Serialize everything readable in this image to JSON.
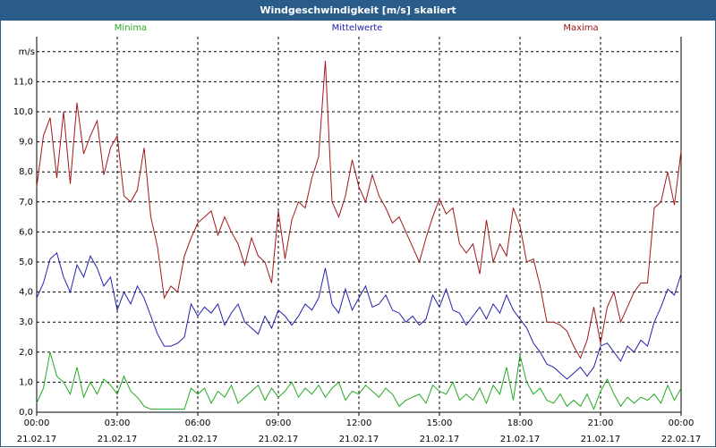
{
  "window": {
    "title": "Windgeschwindigkeit [m/s] skaliert"
  },
  "colors": {
    "titlebar": "#2a5c8a",
    "minima": "#22aa22",
    "mittelwerte": "#2222aa",
    "maxima": "#a01818"
  },
  "chart_data": {
    "type": "line",
    "title": "Windgeschwindigkeit [m/s] skaliert",
    "ylabel": "m/s",
    "xlabel": "",
    "ylim": [
      0,
      12.5
    ],
    "xlim": [
      "21.02.17 00:00",
      "22.02.17 00:00"
    ],
    "grid": true,
    "legend_position": "top",
    "y_ticks": [
      "0,0",
      "1,0",
      "2,0",
      "3,0",
      "4,0",
      "5,0",
      "6,0",
      "7,0",
      "8,0",
      "9,0",
      "10,0",
      "11,0"
    ],
    "x_ticks": [
      {
        "time": "00:00",
        "date": "21.02.17"
      },
      {
        "time": "03:00",
        "date": "21.02.17"
      },
      {
        "time": "06:00",
        "date": "21.02.17"
      },
      {
        "time": "09:00",
        "date": "21.02.17"
      },
      {
        "time": "12:00",
        "date": "21.02.17"
      },
      {
        "time": "15:00",
        "date": "21.02.17"
      },
      {
        "time": "18:00",
        "date": "21.02.17"
      },
      {
        "time": "21:00",
        "date": "21.02.17"
      },
      {
        "time": "00:00",
        "date": "22.02.17"
      }
    ],
    "series": [
      {
        "name": "Minima",
        "color": "#22aa22",
        "points": [
          [
            0,
            0.3
          ],
          [
            0.25,
            0.8
          ],
          [
            0.5,
            2.0
          ],
          [
            0.75,
            1.2
          ],
          [
            1.0,
            1.0
          ],
          [
            1.25,
            0.6
          ],
          [
            1.5,
            1.5
          ],
          [
            1.75,
            0.5
          ],
          [
            2.0,
            1.0
          ],
          [
            2.25,
            0.6
          ],
          [
            2.5,
            1.1
          ],
          [
            2.75,
            0.9
          ],
          [
            3.0,
            0.6
          ],
          [
            3.25,
            1.2
          ],
          [
            3.5,
            0.7
          ],
          [
            3.75,
            0.5
          ],
          [
            4.0,
            0.2
          ],
          [
            4.25,
            0.1
          ],
          [
            4.5,
            0.1
          ],
          [
            4.75,
            0.1
          ],
          [
            5.0,
            0.1
          ],
          [
            5.25,
            0.1
          ],
          [
            5.5,
            0.1
          ],
          [
            5.75,
            0.8
          ],
          [
            6.0,
            0.6
          ],
          [
            6.25,
            0.8
          ],
          [
            6.5,
            0.3
          ],
          [
            6.75,
            0.7
          ],
          [
            7.0,
            0.5
          ],
          [
            7.25,
            0.9
          ],
          [
            7.5,
            0.3
          ],
          [
            7.75,
            0.5
          ],
          [
            8.0,
            0.7
          ],
          [
            8.25,
            0.9
          ],
          [
            8.5,
            0.4
          ],
          [
            8.75,
            0.8
          ],
          [
            9.0,
            0.5
          ],
          [
            9.25,
            0.7
          ],
          [
            9.5,
            1.0
          ],
          [
            9.75,
            0.5
          ],
          [
            10.0,
            0.8
          ],
          [
            10.25,
            0.6
          ],
          [
            10.5,
            0.9
          ],
          [
            10.75,
            0.5
          ],
          [
            11.0,
            0.8
          ],
          [
            11.25,
            1.0
          ],
          [
            11.5,
            0.4
          ],
          [
            11.75,
            0.7
          ],
          [
            12.0,
            0.6
          ],
          [
            12.25,
            0.9
          ],
          [
            12.5,
            0.7
          ],
          [
            12.75,
            0.5
          ],
          [
            13.0,
            0.8
          ],
          [
            13.25,
            0.6
          ],
          [
            13.5,
            0.2
          ],
          [
            13.75,
            0.4
          ],
          [
            14.0,
            0.5
          ],
          [
            14.25,
            0.6
          ],
          [
            14.5,
            0.3
          ],
          [
            14.75,
            0.9
          ],
          [
            15.0,
            0.7
          ],
          [
            15.25,
            0.6
          ],
          [
            15.5,
            1.0
          ],
          [
            15.75,
            0.4
          ],
          [
            16.0,
            0.6
          ],
          [
            16.25,
            0.4
          ],
          [
            16.5,
            0.8
          ],
          [
            16.75,
            0.3
          ],
          [
            17.0,
            0.9
          ],
          [
            17.25,
            0.6
          ],
          [
            17.5,
            1.5
          ],
          [
            17.75,
            0.4
          ],
          [
            18.0,
            1.9
          ],
          [
            18.25,
            1.0
          ],
          [
            18.5,
            0.6
          ],
          [
            18.75,
            0.8
          ],
          [
            19.0,
            0.4
          ],
          [
            19.25,
            0.3
          ],
          [
            19.5,
            0.6
          ],
          [
            19.75,
            0.2
          ],
          [
            20.0,
            0.4
          ],
          [
            20.25,
            0.2
          ],
          [
            20.5,
            0.6
          ],
          [
            20.75,
            0.1
          ],
          [
            21.0,
            0.7
          ],
          [
            21.25,
            1.1
          ],
          [
            21.5,
            0.6
          ],
          [
            21.75,
            0.2
          ],
          [
            22.0,
            0.5
          ],
          [
            22.25,
            0.3
          ],
          [
            22.5,
            0.5
          ],
          [
            22.75,
            0.4
          ],
          [
            23.0,
            0.6
          ],
          [
            23.25,
            0.3
          ],
          [
            23.5,
            0.9
          ],
          [
            23.75,
            0.4
          ],
          [
            24.0,
            0.8
          ]
        ]
      },
      {
        "name": "Mittelwerte",
        "color": "#2222aa",
        "points": [
          [
            0,
            3.8
          ],
          [
            0.25,
            4.3
          ],
          [
            0.5,
            5.1
          ],
          [
            0.75,
            5.3
          ],
          [
            1.0,
            4.5
          ],
          [
            1.25,
            4.0
          ],
          [
            1.5,
            4.9
          ],
          [
            1.75,
            4.5
          ],
          [
            2.0,
            5.2
          ],
          [
            2.25,
            4.8
          ],
          [
            2.5,
            4.2
          ],
          [
            2.75,
            4.5
          ],
          [
            3.0,
            3.4
          ],
          [
            3.25,
            4.0
          ],
          [
            3.5,
            3.6
          ],
          [
            3.75,
            4.2
          ],
          [
            4.0,
            3.8
          ],
          [
            4.25,
            3.2
          ],
          [
            4.5,
            2.6
          ],
          [
            4.75,
            2.2
          ],
          [
            5.0,
            2.2
          ],
          [
            5.25,
            2.3
          ],
          [
            5.5,
            2.5
          ],
          [
            5.75,
            3.6
          ],
          [
            6.0,
            3.2
          ],
          [
            6.25,
            3.5
          ],
          [
            6.5,
            3.3
          ],
          [
            6.75,
            3.6
          ],
          [
            7.0,
            2.9
          ],
          [
            7.25,
            3.3
          ],
          [
            7.5,
            3.6
          ],
          [
            7.75,
            3.0
          ],
          [
            8.0,
            2.8
          ],
          [
            8.25,
            2.6
          ],
          [
            8.5,
            3.2
          ],
          [
            8.75,
            2.8
          ],
          [
            9.0,
            3.4
          ],
          [
            9.25,
            3.2
          ],
          [
            9.5,
            2.9
          ],
          [
            9.75,
            3.2
          ],
          [
            10.0,
            3.6
          ],
          [
            10.25,
            3.4
          ],
          [
            10.5,
            3.8
          ],
          [
            10.75,
            4.8
          ],
          [
            11.0,
            3.6
          ],
          [
            11.25,
            3.3
          ],
          [
            11.5,
            4.1
          ],
          [
            11.75,
            3.4
          ],
          [
            12.0,
            3.8
          ],
          [
            12.25,
            4.2
          ],
          [
            12.5,
            3.5
          ],
          [
            12.75,
            3.6
          ],
          [
            13.0,
            3.9
          ],
          [
            13.25,
            3.4
          ],
          [
            13.5,
            3.3
          ],
          [
            13.75,
            3.0
          ],
          [
            14.0,
            3.2
          ],
          [
            14.25,
            2.9
          ],
          [
            14.5,
            3.1
          ],
          [
            14.75,
            3.9
          ],
          [
            15.0,
            3.5
          ],
          [
            15.25,
            4.1
          ],
          [
            15.5,
            3.4
          ],
          [
            15.75,
            3.3
          ],
          [
            16.0,
            2.9
          ],
          [
            16.25,
            3.2
          ],
          [
            16.5,
            3.5
          ],
          [
            16.75,
            3.1
          ],
          [
            17.0,
            3.6
          ],
          [
            17.25,
            3.3
          ],
          [
            17.5,
            3.9
          ],
          [
            17.75,
            3.4
          ],
          [
            18.0,
            3.1
          ],
          [
            18.25,
            2.8
          ],
          [
            18.5,
            2.3
          ],
          [
            18.75,
            2.0
          ],
          [
            19.0,
            1.6
          ],
          [
            19.25,
            1.5
          ],
          [
            19.5,
            1.3
          ],
          [
            19.75,
            1.1
          ],
          [
            20.0,
            1.3
          ],
          [
            20.25,
            1.5
          ],
          [
            20.5,
            1.2
          ],
          [
            20.75,
            1.5
          ],
          [
            21.0,
            2.2
          ],
          [
            21.25,
            2.3
          ],
          [
            21.5,
            2.0
          ],
          [
            21.75,
            1.7
          ],
          [
            22.0,
            2.2
          ],
          [
            22.25,
            2.0
          ],
          [
            22.5,
            2.4
          ],
          [
            22.75,
            2.2
          ],
          [
            23.0,
            3.0
          ],
          [
            23.25,
            3.5
          ],
          [
            23.5,
            4.1
          ],
          [
            23.75,
            3.9
          ],
          [
            24.0,
            4.6
          ]
        ]
      },
      {
        "name": "Maxima",
        "color": "#a01818",
        "points": [
          [
            0,
            7.5
          ],
          [
            0.25,
            9.2
          ],
          [
            0.5,
            9.8
          ],
          [
            0.75,
            7.8
          ],
          [
            1.0,
            10.0
          ],
          [
            1.25,
            7.6
          ],
          [
            1.5,
            10.3
          ],
          [
            1.75,
            8.6
          ],
          [
            2.0,
            9.2
          ],
          [
            2.25,
            9.7
          ],
          [
            2.5,
            7.9
          ],
          [
            2.75,
            8.8
          ],
          [
            3.0,
            9.2
          ],
          [
            3.25,
            7.2
          ],
          [
            3.5,
            7.0
          ],
          [
            3.75,
            7.4
          ],
          [
            4.0,
            8.8
          ],
          [
            4.25,
            6.5
          ],
          [
            4.5,
            5.5
          ],
          [
            4.75,
            3.8
          ],
          [
            5.0,
            4.2
          ],
          [
            5.25,
            4.0
          ],
          [
            5.5,
            5.2
          ],
          [
            5.75,
            5.8
          ],
          [
            6.0,
            6.3
          ],
          [
            6.25,
            6.5
          ],
          [
            6.5,
            6.7
          ],
          [
            6.75,
            5.9
          ],
          [
            7.0,
            6.5
          ],
          [
            7.25,
            6.0
          ],
          [
            7.5,
            5.6
          ],
          [
            7.75,
            4.9
          ],
          [
            8.0,
            5.8
          ],
          [
            8.25,
            5.2
          ],
          [
            8.5,
            5.0
          ],
          [
            8.75,
            4.3
          ],
          [
            9.0,
            6.7
          ],
          [
            9.25,
            5.1
          ],
          [
            9.5,
            6.4
          ],
          [
            9.75,
            7.0
          ],
          [
            10.0,
            6.8
          ],
          [
            10.25,
            7.8
          ],
          [
            10.5,
            8.5
          ],
          [
            10.75,
            11.7
          ],
          [
            11.0,
            7.0
          ],
          [
            11.25,
            6.5
          ],
          [
            11.5,
            7.2
          ],
          [
            11.75,
            8.4
          ],
          [
            12.0,
            7.5
          ],
          [
            12.25,
            7.0
          ],
          [
            12.5,
            7.9
          ],
          [
            12.75,
            7.2
          ],
          [
            13.0,
            6.8
          ],
          [
            13.25,
            6.3
          ],
          [
            13.5,
            6.5
          ],
          [
            13.75,
            6.0
          ],
          [
            14.0,
            5.5
          ],
          [
            14.25,
            5.0
          ],
          [
            14.5,
            5.8
          ],
          [
            14.75,
            6.5
          ],
          [
            15.0,
            7.1
          ],
          [
            15.25,
            6.6
          ],
          [
            15.5,
            6.8
          ],
          [
            15.75,
            5.6
          ],
          [
            16.0,
            5.3
          ],
          [
            16.25,
            5.6
          ],
          [
            16.5,
            4.6
          ],
          [
            16.75,
            6.4
          ],
          [
            17.0,
            5.0
          ],
          [
            17.25,
            5.6
          ],
          [
            17.5,
            5.2
          ],
          [
            17.75,
            6.8
          ],
          [
            18.0,
            6.2
          ],
          [
            18.25,
            5.0
          ],
          [
            18.5,
            5.1
          ],
          [
            18.75,
            4.2
          ],
          [
            19.0,
            3.0
          ],
          [
            19.25,
            3.0
          ],
          [
            19.5,
            2.9
          ],
          [
            19.75,
            2.7
          ],
          [
            20.0,
            2.2
          ],
          [
            20.25,
            1.8
          ],
          [
            20.5,
            2.4
          ],
          [
            20.75,
            3.5
          ],
          [
            21.0,
            2.3
          ],
          [
            21.25,
            3.5
          ],
          [
            21.5,
            4.0
          ],
          [
            21.75,
            3.0
          ],
          [
            22.0,
            3.5
          ],
          [
            22.25,
            4.0
          ],
          [
            22.5,
            4.3
          ],
          [
            22.75,
            4.3
          ],
          [
            23.0,
            6.8
          ],
          [
            23.25,
            7.0
          ],
          [
            23.5,
            8.0
          ],
          [
            23.75,
            6.9
          ],
          [
            24.0,
            8.7
          ]
        ]
      }
    ]
  }
}
